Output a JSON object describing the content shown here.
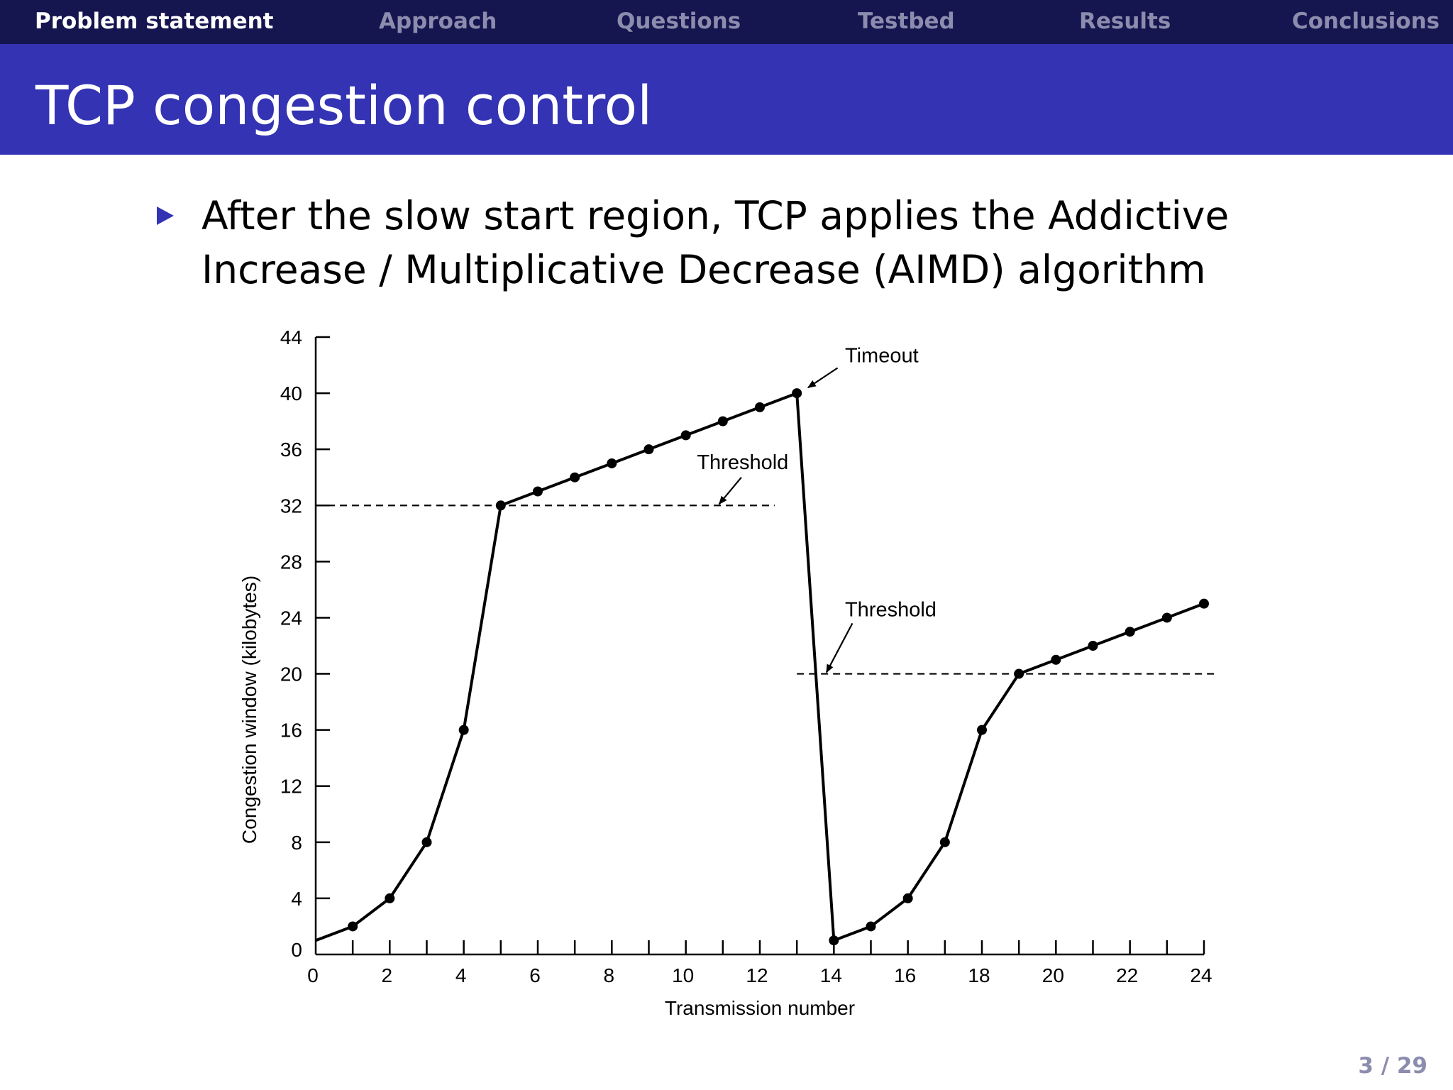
{
  "nav": {
    "items": [
      {
        "label": "Problem statement",
        "active": true
      },
      {
        "label": "Approach",
        "active": false
      },
      {
        "label": "Questions",
        "active": false
      },
      {
        "label": "Testbed",
        "active": false
      },
      {
        "label": "Results",
        "active": false
      },
      {
        "label": "Conclusions",
        "active": false
      }
    ]
  },
  "frame": {
    "title": "TCP congestion control"
  },
  "bullet": {
    "line1": "After the slow start region, TCP applies the Addictive",
    "line2": "Increase / Multiplicative Decrease (AIMD) algorithm"
  },
  "footer": {
    "page": "3 / 29"
  },
  "colors": {
    "nav_bg": "#15154f",
    "title_bg": "#3333b3",
    "nav_inactive": "#8c8cae",
    "bullet": "#3333b3"
  },
  "chart_data": {
    "type": "line",
    "xlabel": "Transmission number",
    "ylabel": "Congestion window (kilobytes)",
    "xlim": [
      0,
      24
    ],
    "ylim": [
      0,
      44
    ],
    "xticks": [
      0,
      2,
      4,
      6,
      8,
      10,
      12,
      14,
      16,
      18,
      20,
      22,
      24
    ],
    "yticks": [
      0,
      4,
      8,
      12,
      16,
      20,
      24,
      28,
      32,
      36,
      40,
      44
    ],
    "grid": false,
    "legend": "none",
    "series": [
      {
        "x": [
          0,
          1,
          2,
          3,
          4,
          5,
          6,
          7,
          8,
          9,
          10,
          11,
          12,
          13,
          14,
          15,
          16,
          17,
          18,
          19,
          20,
          21,
          22,
          23,
          24
        ],
        "y": [
          1,
          2,
          4,
          8,
          16,
          32,
          33,
          34,
          35,
          36,
          37,
          38,
          39,
          40,
          1,
          2,
          4,
          8,
          16,
          20,
          21,
          22,
          23,
          24,
          25
        ],
        "markers": [
          1,
          2,
          3,
          4,
          5,
          6,
          7,
          8,
          9,
          10,
          11,
          12,
          13,
          14,
          15,
          16,
          17,
          18,
          19,
          20,
          21,
          22,
          23,
          24
        ]
      }
    ],
    "thresholds": [
      {
        "y": 32,
        "x_from": 0,
        "x_to": 12.4
      },
      {
        "y": 20,
        "x_from": 13,
        "x_to": 24.3
      }
    ],
    "annotations": [
      {
        "text": "Timeout",
        "x": 14.3,
        "y": 42.2,
        "arrow_from": [
          14.1,
          41.8
        ],
        "arrow_to": [
          13.3,
          40.4
        ]
      },
      {
        "text": "Threshold",
        "x": 10.3,
        "y": 34.6,
        "arrow_from": [
          11.5,
          34.0
        ],
        "arrow_to": [
          10.9,
          32.1
        ]
      },
      {
        "text": "Threshold",
        "x": 14.3,
        "y": 24.1,
        "arrow_from": [
          14.5,
          23.6
        ],
        "arrow_to": [
          13.8,
          20.1
        ]
      }
    ]
  }
}
